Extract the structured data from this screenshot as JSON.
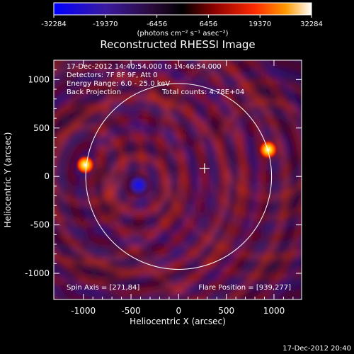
{
  "colorbar": {
    "ticks": [
      "-32284",
      "-19370",
      "-6456",
      "6456",
      "19370",
      "32284"
    ],
    "range": [
      -32284,
      32284
    ],
    "unit_label": "(photons cm⁻² s⁻¹ asec⁻²)",
    "colors": [
      "#0000ff",
      "#3a1aa0",
      "#2a0a3a",
      "#000000",
      "#8a0000",
      "#ff2a00",
      "#ff9a00",
      "#ffffff"
    ]
  },
  "chart_data": {
    "type": "heatmap",
    "title": "Reconstructed RHESSI Image",
    "xlabel": "Heliocentric X (arcsec)",
    "ylabel": "Heliocentric Y (arcsec)",
    "xlim": [
      -1310,
      1290
    ],
    "ylim": [
      -1270,
      1200
    ],
    "xticks": [
      -1000,
      -500,
      0,
      500,
      1000
    ],
    "yticks": [
      -1000,
      -500,
      0,
      500,
      1000
    ],
    "xtick_labels": [
      "-1000",
      "-500",
      "0",
      "500",
      "1000"
    ],
    "ytick_labels": [
      "-1000",
      "-500",
      "0",
      "500",
      "1000"
    ],
    "solar_limb_radius_arcsec": 975,
    "sources": [
      {
        "x": 939,
        "y": 277,
        "kind": "bright"
      },
      {
        "x": -980,
        "y": 120,
        "kind": "bright"
      },
      {
        "x": -420,
        "y": -90,
        "kind": "negative"
      }
    ],
    "spin_axis": [
      271,
      84
    ],
    "flare_position": [
      939,
      277
    ],
    "annotations": [
      "17-Dec-2012 14:40:54.000 to 14:46:54.000",
      "Detectors: 7F 8F 9F, Att 0",
      "Energy Range: 6.0 - 25.0 keV",
      "Back Projection",
      "Total counts: 4.78E+04"
    ],
    "spin_axis_label": "Spin Axis = [271,84]",
    "flare_position_label": "Flare Position = [939,277]"
  },
  "timestamp": "17-Dec-2012 20:40"
}
